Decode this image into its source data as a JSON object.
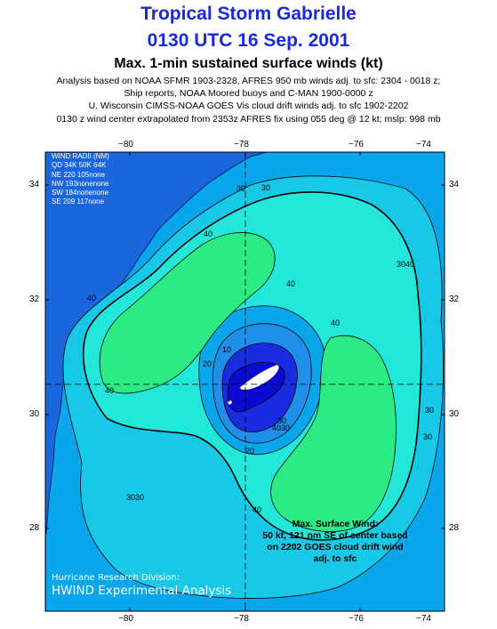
{
  "header": {
    "title_line1": "Tropical Storm Gabrielle",
    "title_line2": "0130 UTC 16 Sep. 2001",
    "subtitle": "Max. 1-min sustained surface winds (kt)",
    "info_lines": [
      "Analysis based on NOAA SFMR 1903-2328, AFRES 950 mb winds adj. to sfc: 2304 - 0018 z;",
      "Ship reports, NOAA Moored buoys and C-MAN 1900-0000 z",
      "U. Wisconsin CIMSS-NOAA GOES Vis cloud drift winds adj. to sfc 1902-2202",
      "0130 z wind center extrapolated from 2353z AFRES fix using 055 deg @ 12 kt;      mslp: 998 mb"
    ]
  },
  "axes": {
    "lon_ticks": [
      "−80",
      "−78",
      "−76",
      "−74"
    ],
    "lat_ticks": [
      "34",
      "32",
      "30",
      "28"
    ]
  },
  "wind_radii": {
    "title": "WIND RADII (NM)",
    "header": "QD 34K 50K 64K",
    "rows": [
      "NE 220 105none",
      "NW 193nonenone",
      "SW 184nonenone",
      "SE 209 117none"
    ]
  },
  "contour_labels": {
    "c10": "10",
    "c20": "20",
    "c30": "30",
    "c40": "40",
    "c3030": "3030",
    "c3040": "3040",
    "c4030": "4030"
  },
  "max_wind": {
    "lines": [
      "Max. Surface Wind:",
      "50 kt, 121 nm SE of center based",
      "on 2202 GOES cloud drift wind",
      "adj. to sfc"
    ]
  },
  "credits": {
    "division": "Hurricane Research Division:",
    "analysis": "HWIND Experimental Analysis"
  },
  "colors": {
    "land": "#1a66dc",
    "ocean_low": "#0aa6ec",
    "band_20_30": "#17c9e6",
    "band_30_40": "#22e7d9",
    "band_40_50": "#2bec84",
    "calm_10": "#1a2ce0",
    "calm_0_5": "#0a0ad0",
    "eye": "#ffffff"
  }
}
